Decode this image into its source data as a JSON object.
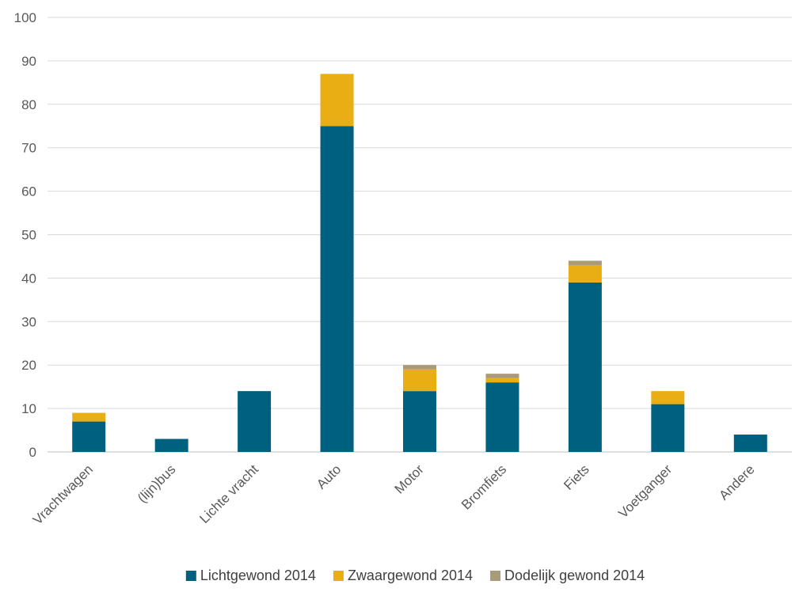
{
  "chart_data": {
    "type": "bar",
    "stacked": true,
    "title": "",
    "xlabel": "",
    "ylabel": "",
    "ylim": [
      0,
      100
    ],
    "yticks": [
      0,
      10,
      20,
      30,
      40,
      50,
      60,
      70,
      80,
      90,
      100
    ],
    "grid": true,
    "legend": "bottom",
    "categories": [
      "Vrachtwagen",
      "(lijn)bus",
      "Lichte vracht",
      "Auto",
      "Motor",
      "Bromfiets",
      "Fiets",
      "Voetganger",
      "Andere"
    ],
    "series": [
      {
        "name": "Lichtgewond 2014",
        "color": "#00607F",
        "values": [
          7,
          3,
          14,
          75,
          14,
          16,
          39,
          11,
          4
        ]
      },
      {
        "name": "Zwaargewond 2014",
        "color": "#E8AE14",
        "values": [
          2,
          0,
          0,
          12,
          5,
          1,
          4,
          3,
          0
        ]
      },
      {
        "name": "Dodelijk gewond 2014",
        "color": "#A99B79",
        "values": [
          0,
          0,
          0,
          0,
          1,
          1,
          1,
          0,
          0
        ]
      }
    ]
  }
}
